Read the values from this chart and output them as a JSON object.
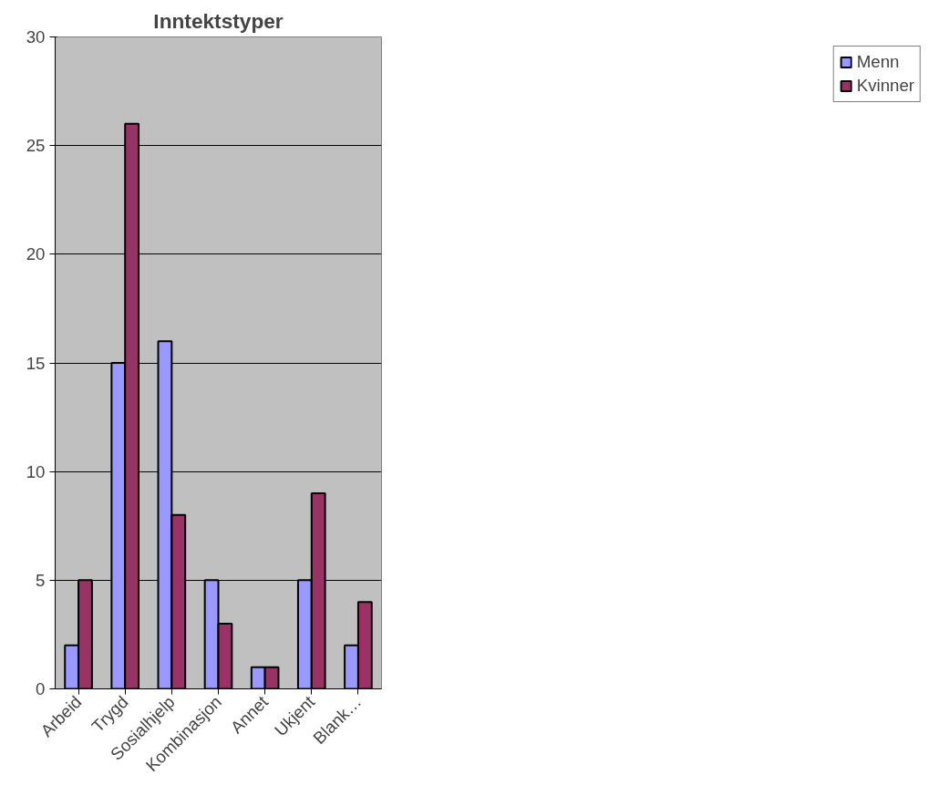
{
  "chart_data": {
    "type": "bar",
    "title": "Inntektstyper",
    "categories": [
      "Arbeid",
      "Trygd",
      "Sosialhjelp",
      "Kombinasjon",
      "Annet",
      "Ukjent",
      "Blank…"
    ],
    "series": [
      {
        "name": "Menn",
        "color": "#9999ff",
        "values": [
          2,
          15,
          16,
          5,
          1,
          5,
          2
        ]
      },
      {
        "name": "Kvinner",
        "color": "#993366",
        "values": [
          5,
          26,
          8,
          3,
          1,
          9,
          4
        ]
      }
    ],
    "ylim": [
      0,
      30
    ],
    "yticks": [
      0,
      5,
      10,
      15,
      20,
      25,
      30
    ],
    "grid": "y",
    "legend": "right"
  }
}
